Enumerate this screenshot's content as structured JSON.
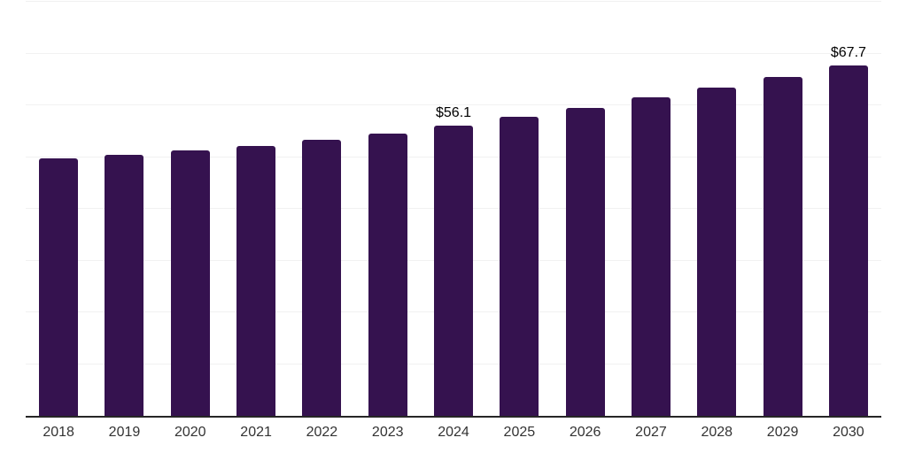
{
  "chart_data": {
    "type": "bar",
    "title": "",
    "xlabel": "",
    "ylabel": "",
    "categories": [
      "2018",
      "2019",
      "2020",
      "2021",
      "2022",
      "2023",
      "2024",
      "2025",
      "2026",
      "2027",
      "2028",
      "2029",
      "2030"
    ],
    "values": [
      49.7,
      50.5,
      51.3,
      52.2,
      53.3,
      54.6,
      56.1,
      57.7,
      59.5,
      61.5,
      63.4,
      65.4,
      67.7
    ],
    "data_labels": [
      "",
      "",
      "",
      "",
      "",
      "",
      "$56.1",
      "",
      "",
      "",
      "",
      "",
      "$67.7"
    ],
    "ylim": [
      0,
      80
    ],
    "gridline_step": 10,
    "grid": true,
    "legend_position": "none",
    "colors": {
      "bar": "#35124F",
      "gridline": "#f1f1f1",
      "axis_line": "#262626",
      "tick_label": "#333333",
      "value_label": "#000000",
      "background": "#ffffff"
    }
  }
}
